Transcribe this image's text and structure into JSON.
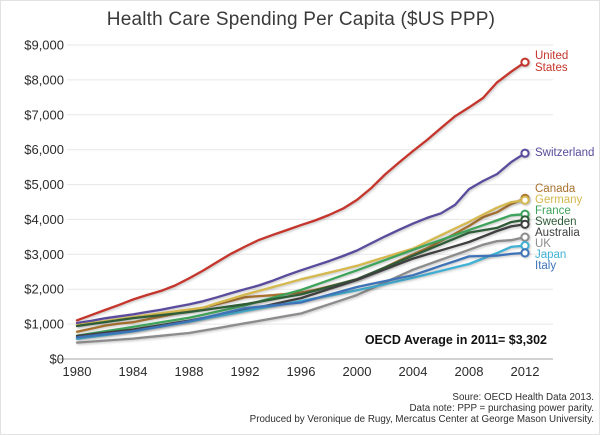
{
  "title": "Health Care Spending Per Capita ($US PPP)",
  "annotation": "OECD Average in 2011= $3,302",
  "source_lines": [
    "Soure: OECD Health Data 2013.",
    "Data note: PPP = purchasing power parity.",
    "Produced by Veronique de Rugy, Mercatus Center at George Mason University."
  ],
  "chart_data": {
    "type": "line",
    "title": "Health Care Spending Per Capita ($US PPP)",
    "xlabel": "",
    "ylabel": "",
    "x": [
      1980,
      1981,
      1982,
      1983,
      1984,
      1985,
      1986,
      1987,
      1988,
      1989,
      1990,
      1991,
      1992,
      1993,
      1994,
      1995,
      1996,
      1997,
      1998,
      1999,
      2000,
      2001,
      2002,
      2003,
      2004,
      2005,
      2006,
      2007,
      2008,
      2009,
      2010,
      2011,
      2012
    ],
    "x_ticks": [
      1980,
      1984,
      1988,
      1992,
      1996,
      2000,
      2004,
      2008,
      2012
    ],
    "y_ticks": [
      {
        "v": 0,
        "label": "$0"
      },
      {
        "v": 1000,
        "label": "$1,000"
      },
      {
        "v": 2000,
        "label": "$2,000"
      },
      {
        "v": 3000,
        "label": "$3,000"
      },
      {
        "v": 4000,
        "label": "$4,000"
      },
      {
        "v": 5000,
        "label": "$5,000"
      },
      {
        "v": 6000,
        "label": "$6,000"
      },
      {
        "v": 7000,
        "label": "$7,000"
      },
      {
        "v": 8000,
        "label": "$8,000"
      },
      {
        "v": 9000,
        "label": "$9,000"
      }
    ],
    "ylim": [
      0,
      9000
    ],
    "grid": true,
    "legend_position": "right of line ends, colored text",
    "endpoint_marker": "open circle",
    "series": [
      {
        "name": "United States",
        "label": "United\nStates",
        "color": "#c5352b",
        "values": [
          1108,
          1255,
          1404,
          1550,
          1704,
          1833,
          1953,
          2107,
          2311,
          2533,
          2776,
          3015,
          3223,
          3413,
          3559,
          3697,
          3838,
          3971,
          4126,
          4311,
          4560,
          4893,
          5287,
          5633,
          5963,
          6278,
          6622,
          6955,
          7211,
          7482,
          7929,
          8233,
          8508
        ]
      },
      {
        "name": "Switzerland",
        "label": "Switzerland",
        "color": "#5a4b9c",
        "values": [
          1033,
          1092,
          1167,
          1225,
          1278,
          1348,
          1414,
          1491,
          1565,
          1657,
          1768,
          1889,
          2000,
          2110,
          2247,
          2401,
          2541,
          2673,
          2806,
          2953,
          3110,
          3314,
          3513,
          3704,
          3880,
          4044,
          4177,
          4417,
          4870,
          5102,
          5299,
          5642,
          5900
        ]
      },
      {
        "name": "Canada",
        "label": "Canada",
        "color": "#a9712d",
        "values": [
          783,
          866,
          958,
          1015,
          1056,
          1135,
          1216,
          1296,
          1377,
          1468,
          1567,
          1671,
          1771,
          1804,
          1830,
          1866,
          1907,
          1982,
          2082,
          2180,
          2289,
          2450,
          2627,
          2819,
          3000,
          3177,
          3382,
          3593,
          3811,
          4065,
          4207,
          4443,
          4602
        ]
      },
      {
        "name": "Germany",
        "label": "Germany",
        "color": "#d5b84e",
        "values": [
          971,
          1030,
          1086,
          1145,
          1205,
          1258,
          1310,
          1364,
          1418,
          1470,
          1602,
          1724,
          1845,
          1954,
          2064,
          2174,
          2283,
          2380,
          2477,
          2574,
          2671,
          2794,
          2918,
          3041,
          3165,
          3356,
          3548,
          3740,
          3931,
          4135,
          4338,
          4495,
          4555
        ]
      },
      {
        "name": "France",
        "label": "France",
        "color": "#3fa45b",
        "values": [
          668,
          731,
          794,
          858,
          921,
          986,
          1051,
          1117,
          1182,
          1271,
          1359,
          1448,
          1536,
          1647,
          1757,
          1868,
          1978,
          2119,
          2260,
          2401,
          2542,
          2689,
          2836,
          2983,
          3130,
          3272,
          3413,
          3555,
          3696,
          3835,
          3974,
          4118,
          4150
        ]
      },
      {
        "name": "Sweden",
        "label": "Sweden",
        "color": "#2f5d38",
        "values": [
          946,
          1002,
          1058,
          1115,
          1171,
          1215,
          1259,
          1302,
          1346,
          1402,
          1458,
          1514,
          1570,
          1641,
          1712,
          1782,
          1853,
          1961,
          2070,
          2178,
          2286,
          2455,
          2623,
          2792,
          2960,
          3126,
          3291,
          3457,
          3622,
          3690,
          3757,
          3925,
          3990
        ]
      },
      {
        "name": "Australia",
        "label": "Australia",
        "color": "#3f3f3f",
        "values": [
          658,
          705,
          752,
          799,
          846,
          910,
          973,
          1037,
          1100,
          1175,
          1250,
          1324,
          1399,
          1486,
          1572,
          1659,
          1745,
          1875,
          2006,
          2136,
          2266,
          2419,
          2572,
          2725,
          2878,
          2997,
          3116,
          3234,
          3353,
          3512,
          3670,
          3800,
          3860
        ]
      },
      {
        "name": "UK",
        "label": "UK",
        "color": "#8c8c8c",
        "values": [
          470,
          499,
          528,
          557,
          586,
          626,
          665,
          705,
          744,
          814,
          884,
          953,
          1023,
          1093,
          1163,
          1234,
          1304,
          1436,
          1568,
          1701,
          1833,
          2015,
          2197,
          2378,
          2560,
          2702,
          2845,
          2987,
          3129,
          3276,
          3380,
          3405,
          3495
        ]
      },
      {
        "name": "Japan",
        "label": "Japan",
        "color": "#41b1d5",
        "values": [
          580,
          633,
          686,
          738,
          791,
          861,
          931,
          1000,
          1070,
          1146,
          1223,
          1299,
          1375,
          1447,
          1518,
          1590,
          1661,
          1738,
          1815,
          1892,
          1969,
          2059,
          2148,
          2238,
          2327,
          2426,
          2525,
          2625,
          2724,
          2880,
          3035,
          3213,
          3250
        ]
      },
      {
        "name": "Italy",
        "label": "Italy",
        "color": "#3e73b8",
        "values": [
          620,
          665,
          710,
          755,
          800,
          870,
          940,
          1010,
          1080,
          1175,
          1270,
          1365,
          1460,
          1500,
          1540,
          1580,
          1620,
          1731,
          1842,
          1953,
          2064,
          2149,
          2234,
          2318,
          2403,
          2538,
          2673,
          2807,
          2942,
          2953,
          2964,
          3012,
          3040
        ]
      }
    ]
  }
}
